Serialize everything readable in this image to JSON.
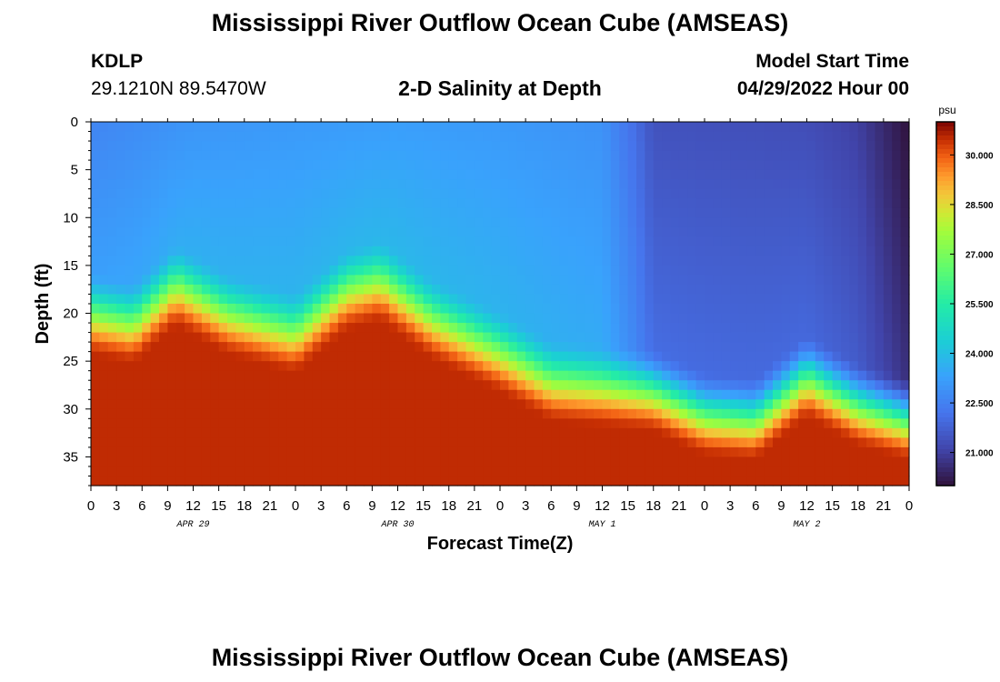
{
  "title": "Mississippi River Outflow Ocean Cube (AMSEAS)",
  "bottom_title": "Mississippi River Outflow Ocean Cube (AMSEAS)",
  "station": {
    "id": "KDLP",
    "coords": "29.1210N  89.5470W"
  },
  "subtitle": "2-D Salinity at Depth",
  "model_start": {
    "label": "Model Start Time",
    "value": "04/29/2022 Hour 00"
  },
  "chart_data": {
    "type": "heatmap",
    "title": "2-D Salinity at Depth",
    "xlabel": "Forecast Time(Z)",
    "ylabel": "Depth (ft)",
    "x_range_hours": [
      0,
      96
    ],
    "y_range_ft": [
      0,
      38
    ],
    "y_inverted": true,
    "xticks": [
      "0",
      "3",
      "6",
      "9",
      "12",
      "15",
      "18",
      "21",
      "0",
      "3",
      "6",
      "9",
      "12",
      "15",
      "18",
      "21",
      "0",
      "3",
      "6",
      "9",
      "12",
      "15",
      "18",
      "21",
      "0",
      "3",
      "6",
      "9",
      "12",
      "15",
      "18",
      "21",
      "0"
    ],
    "yticks": [
      0,
      5,
      10,
      15,
      20,
      25,
      30,
      35
    ],
    "days": [
      {
        "label": "APR 29",
        "hour": 12
      },
      {
        "label": "APR 30",
        "hour": 36
      },
      {
        "label": "MAY 1",
        "hour": 60
      },
      {
        "label": "MAY 2",
        "hour": 84
      }
    ],
    "colorbar": {
      "unit": "psu",
      "range": [
        20.0,
        31.0
      ],
      "ticks": [
        "30.000",
        "28.500",
        "27.000",
        "25.500",
        "24.000",
        "22.500",
        "21.000"
      ],
      "tick_values": [
        30.0,
        28.5,
        27.0,
        25.5,
        24.0,
        22.5,
        21.0
      ]
    },
    "surface_salinity_psu": [
      {
        "hour": 0,
        "value": 22.6
      },
      {
        "hour": 12,
        "value": 23.0
      },
      {
        "hour": 24,
        "value": 23.1
      },
      {
        "hour": 36,
        "value": 23.2
      },
      {
        "hour": 48,
        "value": 23.1
      },
      {
        "hour": 60,
        "value": 22.9
      },
      {
        "hour": 64,
        "value": 22.0
      },
      {
        "hour": 66,
        "value": 21.4
      },
      {
        "hour": 84,
        "value": 21.3
      },
      {
        "hour": 90,
        "value": 21.0
      },
      {
        "hour": 96,
        "value": 20.0
      }
    ],
    "halocline_depth_ft": [
      {
        "hour": 0,
        "value": 19.5
      },
      {
        "hour": 5,
        "value": 20.5
      },
      {
        "hour": 10,
        "value": 16.5
      },
      {
        "hour": 16,
        "value": 19.5
      },
      {
        "hour": 24,
        "value": 21.5
      },
      {
        "hour": 30,
        "value": 17.0
      },
      {
        "hour": 34,
        "value": 16.0
      },
      {
        "hour": 40,
        "value": 20.0
      },
      {
        "hour": 48,
        "value": 23.5
      },
      {
        "hour": 54,
        "value": 26.5
      },
      {
        "hour": 60,
        "value": 27.0
      },
      {
        "hour": 66,
        "value": 27.5
      },
      {
        "hour": 72,
        "value": 30.0
      },
      {
        "hour": 78,
        "value": 30.5
      },
      {
        "hour": 84,
        "value": 26.0
      },
      {
        "hour": 90,
        "value": 29.0
      },
      {
        "hour": 96,
        "value": 30.5
      }
    ],
    "bottom_salinity_psu": 30.5
  }
}
